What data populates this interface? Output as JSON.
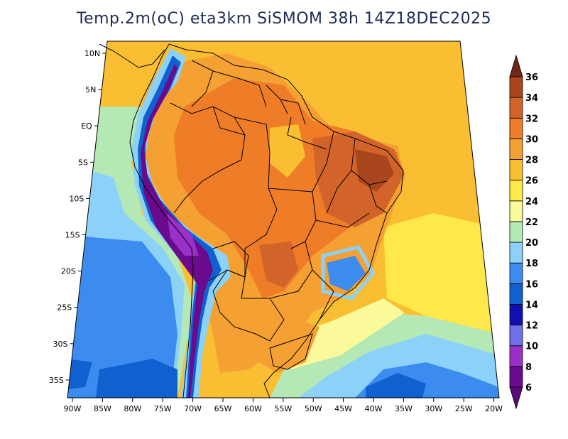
{
  "title": "Temp.2m(oC) eta3km SiSMOM 38h 14Z18DEC2025",
  "lat_ticks": [
    "10N",
    "5N",
    "EQ",
    "5S",
    "10S",
    "15S",
    "20S",
    "25S",
    "30S",
    "35S"
  ],
  "lon_ticks": [
    "90W",
    "85W",
    "80W",
    "75W",
    "70W",
    "65W",
    "60W",
    "55W",
    "50W",
    "45W",
    "40W",
    "35W",
    "30W",
    "25W",
    "20W"
  ],
  "colorbar": {
    "levels": [
      "6",
      "8",
      "10",
      "12",
      "14",
      "16",
      "18",
      "20",
      "22",
      "24",
      "26",
      "28",
      "30",
      "32",
      "34",
      "36"
    ],
    "colors": [
      "#6a0a8c",
      "#9b30c8",
      "#6f6fe8",
      "#1010b0",
      "#1060d0",
      "#3c8cf0",
      "#8cd2f8",
      "#b4e8b4",
      "#fafa9a",
      "#ffe84a",
      "#fabe32",
      "#f5a032",
      "#ef7d28",
      "#d2642a",
      "#aa461e",
      "#783214"
    ],
    "under_color": "#5a0a78",
    "over_color": "#6e2814"
  }
}
